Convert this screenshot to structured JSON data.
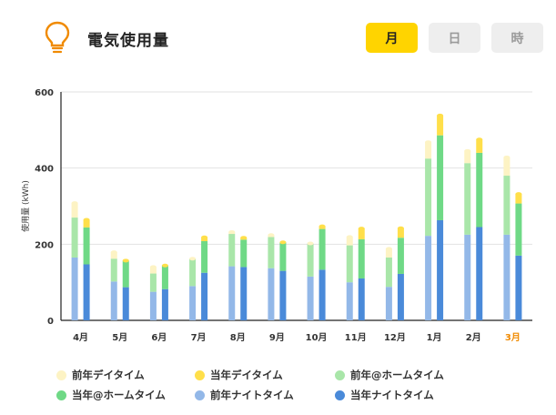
{
  "header": {
    "title": "電気使用量",
    "icon": "lightbulb-icon",
    "tabs": [
      {
        "label": "月",
        "active": true
      },
      {
        "label": "日",
        "active": false
      },
      {
        "label": "時",
        "active": false
      }
    ]
  },
  "colors": {
    "accent": "#ffd400",
    "highlight_month": "#f08a00",
    "prev_day": "#fdf3c4",
    "curr_day": "#ffdf4a",
    "prev_home": "#a9e6a9",
    "curr_home": "#6fd986",
    "prev_night": "#93b8e8",
    "curr_night": "#4a8ad9"
  },
  "chart_data": {
    "type": "bar",
    "stacked": true,
    "grouped_pairs": true,
    "ylabel": "使用量 (kWh)",
    "ylim": [
      0,
      600
    ],
    "yticks": [
      0,
      200,
      400,
      600
    ],
    "grid": true,
    "categories": [
      "4月",
      "5月",
      "6月",
      "7月",
      "8月",
      "9月",
      "10月",
      "11月",
      "12月",
      "1月",
      "2月",
      "3月"
    ],
    "highlight_category": "3月",
    "series": [
      {
        "name": "前年ナイトタイム",
        "group": "prev",
        "color_key": "prev_night",
        "values": [
          165,
          102,
          75,
          90,
          142,
          137,
          115,
          100,
          88,
          222,
          225,
          225
        ]
      },
      {
        "name": "前年@ホームタイム",
        "group": "prev",
        "color_key": "prev_home",
        "values": [
          105,
          60,
          48,
          72,
          85,
          82,
          87,
          97,
          77,
          203,
          188,
          155
        ]
      },
      {
        "name": "前年デイタイム",
        "group": "prev",
        "color_key": "prev_day",
        "values": [
          38,
          17,
          17,
          0,
          5,
          5,
          0,
          22,
          23,
          43,
          32,
          48
        ]
      },
      {
        "name": "当年ナイトタイム",
        "group": "curr",
        "color_key": "curr_night",
        "values": [
          147,
          87,
          82,
          125,
          140,
          130,
          133,
          110,
          122,
          263,
          245,
          170
        ]
      },
      {
        "name": "当年@ホームタイム",
        "group": "curr",
        "color_key": "curr_home",
        "values": [
          97,
          70,
          62,
          83,
          72,
          75,
          107,
          103,
          95,
          223,
          195,
          137
        ]
      },
      {
        "name": "当年デイタイム",
        "group": "curr",
        "color_key": "curr_day",
        "values": [
          20,
          0,
          0,
          10,
          5,
          0,
          7,
          28,
          25,
          52,
          35,
          25
        ]
      }
    ]
  },
  "legend": [
    {
      "label": "前年デイタイム",
      "color_key": "prev_day"
    },
    {
      "label": "当年デイタイム",
      "color_key": "curr_day"
    },
    {
      "label": "前年@ホームタイム",
      "color_key": "prev_home"
    },
    {
      "label": "当年@ホームタイム",
      "color_key": "curr_home"
    },
    {
      "label": "前年ナイトタイム",
      "color_key": "prev_night"
    },
    {
      "label": "当年ナイトタイム",
      "color_key": "curr_night"
    }
  ]
}
